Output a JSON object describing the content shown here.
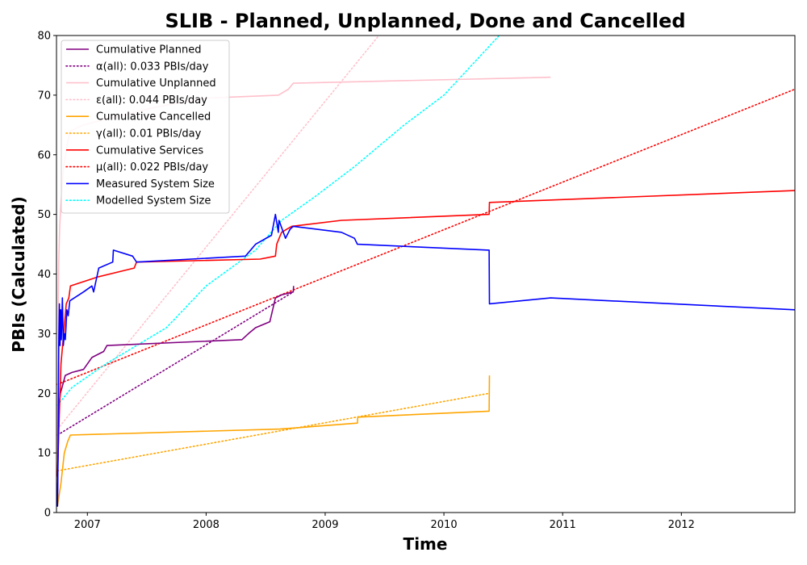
{
  "chart_data": {
    "type": "line",
    "title": "SLIB - Planned, Unplanned, Done  and Cancelled",
    "xlabel": "Time",
    "ylabel": "PBIs (Calculated)",
    "xlim": [
      "2006-09-28",
      "2012-12-15"
    ],
    "ylim": [
      0,
      80
    ],
    "x_ticks": [
      "2007",
      "2008",
      "2009",
      "2010",
      "2011",
      "2012"
    ],
    "y_ticks": [
      0,
      10,
      20,
      30,
      40,
      50,
      60,
      70,
      80
    ],
    "grid": false,
    "legend_position": "top-left",
    "series": [
      {
        "name": "Cumulative Planned",
        "color": "#800080",
        "style": "solid",
        "points": [
          [
            "2006-10-01",
            1
          ],
          [
            "2006-10-03",
            10
          ],
          [
            "2006-10-06",
            18
          ],
          [
            "2006-10-10",
            20
          ],
          [
            "2006-10-15",
            21
          ],
          [
            "2006-10-20",
            22
          ],
          [
            "2006-10-25",
            23
          ],
          [
            "2006-11-15",
            23.5
          ],
          [
            "2006-12-20",
            24
          ],
          [
            "2007-01-15",
            26
          ],
          [
            "2007-02-20",
            27
          ],
          [
            "2007-03-02",
            28
          ],
          [
            "2008-04-20",
            29
          ],
          [
            "2008-05-10",
            30
          ],
          [
            "2008-06-01",
            31
          ],
          [
            "2008-07-15",
            32
          ],
          [
            "2008-08-01",
            36
          ],
          [
            "2008-08-20",
            36.5
          ],
          [
            "2008-09-25",
            37
          ],
          [
            "2008-09-26",
            38
          ]
        ]
      },
      {
        "name": "α(all): 0.033 PBIs/day",
        "color": "#800080",
        "style": "dotted",
        "points": [
          [
            "2006-10-01",
            13
          ],
          [
            "2008-09-25",
            37
          ]
        ]
      },
      {
        "name": "Cumulative Unplanned",
        "color": "#ffc0cb",
        "style": "solid",
        "points": [
          [
            "2006-10-01",
            5
          ],
          [
            "2006-10-03",
            30
          ],
          [
            "2006-10-05",
            42
          ],
          [
            "2006-10-08",
            48
          ],
          [
            "2006-10-12",
            52
          ],
          [
            "2006-10-20",
            58
          ],
          [
            "2006-11-01",
            62
          ],
          [
            "2006-11-10",
            64
          ],
          [
            "2006-12-20",
            65
          ],
          [
            "2007-03-01",
            66
          ],
          [
            "2007-08-01",
            68
          ],
          [
            "2008-01-01",
            69.5
          ],
          [
            "2008-08-10",
            70
          ],
          [
            "2008-09-10",
            71
          ],
          [
            "2008-09-25",
            72
          ],
          [
            "2010-11-25",
            73
          ]
        ]
      },
      {
        "name": "ε(all): 0.044 PBIs/day",
        "color": "#ffc0cb",
        "style": "dotted",
        "points": [
          [
            "2006-10-01",
            14
          ],
          [
            "2009-06-15",
            80
          ]
        ]
      },
      {
        "name": "Cumulative Cancelled",
        "color": "#ffa500",
        "style": "solid",
        "points": [
          [
            "2006-10-01",
            1
          ],
          [
            "2006-10-12",
            5
          ],
          [
            "2006-10-22",
            10
          ],
          [
            "2006-11-02",
            12
          ],
          [
            "2006-11-10",
            13
          ],
          [
            "2008-08-15",
            14
          ],
          [
            "2009-04-10",
            15
          ],
          [
            "2009-04-11",
            16
          ],
          [
            "2010-05-20",
            17
          ],
          [
            "2010-05-21",
            23
          ]
        ]
      },
      {
        "name": "γ(all): 0.01 PBIs/day",
        "color": "#ffa500",
        "style": "dotted",
        "points": [
          [
            "2006-10-01",
            7
          ],
          [
            "2010-05-20",
            20
          ]
        ]
      },
      {
        "name": "Cumulative Services",
        "color": "#ff0000",
        "style": "solid",
        "points": [
          [
            "2006-10-01",
            6
          ],
          [
            "2006-10-06",
            15
          ],
          [
            "2006-10-12",
            25
          ],
          [
            "2006-10-20",
            30
          ],
          [
            "2006-10-28",
            35
          ],
          [
            "2006-11-05",
            36
          ],
          [
            "2006-11-10",
            38
          ],
          [
            "2007-02-01",
            39.5
          ],
          [
            "2007-05-25",
            41
          ],
          [
            "2007-06-01",
            42
          ],
          [
            "2008-06-15",
            42.5
          ],
          [
            "2008-08-01",
            43
          ],
          [
            "2008-08-05",
            45
          ],
          [
            "2008-08-20",
            47
          ],
          [
            "2008-09-20",
            48
          ],
          [
            "2009-02-20",
            49
          ],
          [
            "2010-05-20",
            50
          ],
          [
            "2010-05-21",
            52
          ],
          [
            "2012-12-15",
            54
          ]
        ]
      },
      {
        "name": "μ(all): 0.022 PBIs/day",
        "color": "#ff0000",
        "style": "dotted",
        "points": [
          [
            "2006-10-01",
            21.5
          ],
          [
            "2012-12-15",
            71
          ]
        ]
      },
      {
        "name": "Measured System Size",
        "color": "#0000ff",
        "style": "solid",
        "points": [
          [
            "2006-10-01",
            1
          ],
          [
            "2006-10-03",
            11
          ],
          [
            "2006-10-05",
            28
          ],
          [
            "2006-10-07",
            35
          ],
          [
            "2006-10-09",
            28
          ],
          [
            "2006-10-11",
            34
          ],
          [
            "2006-10-13",
            29
          ],
          [
            "2006-10-16",
            36
          ],
          [
            "2006-10-19",
            28
          ],
          [
            "2006-10-22",
            30
          ],
          [
            "2006-10-25",
            29
          ],
          [
            "2006-10-30",
            34
          ],
          [
            "2006-11-03",
            33
          ],
          [
            "2006-11-08",
            35.5
          ],
          [
            "2006-12-20",
            37
          ],
          [
            "2007-01-15",
            38
          ],
          [
            "2007-01-20",
            37
          ],
          [
            "2007-02-01",
            40
          ],
          [
            "2007-02-05",
            41
          ],
          [
            "2007-03-20",
            42
          ],
          [
            "2007-03-22",
            44
          ],
          [
            "2007-05-20",
            43
          ],
          [
            "2007-06-01",
            42
          ],
          [
            "2008-05-01",
            43
          ],
          [
            "2008-06-01",
            45
          ],
          [
            "2008-07-20",
            46.5
          ],
          [
            "2008-08-01",
            50
          ],
          [
            "2008-08-10",
            47
          ],
          [
            "2008-08-12",
            49
          ],
          [
            "2008-09-01",
            46
          ],
          [
            "2008-09-15",
            47.5
          ],
          [
            "2008-09-25",
            48
          ],
          [
            "2009-02-20",
            47
          ],
          [
            "2009-04-01",
            46
          ],
          [
            "2009-04-10",
            45
          ],
          [
            "2010-05-20",
            44
          ],
          [
            "2010-05-21",
            35
          ],
          [
            "2010-11-25",
            36
          ],
          [
            "2012-12-15",
            34
          ]
        ]
      },
      {
        "name": "Modelled System Size",
        "color": "#00ffff",
        "style": "dotted",
        "points": [
          [
            "2006-10-01",
            18
          ],
          [
            "2006-11-15",
            21
          ],
          [
            "2007-03-01",
            25
          ],
          [
            "2007-09-01",
            31
          ],
          [
            "2008-01-01",
            38
          ],
          [
            "2008-06-01",
            44
          ],
          [
            "2008-08-20",
            49
          ],
          [
            "2008-12-01",
            53
          ],
          [
            "2009-04-01",
            58
          ],
          [
            "2009-09-01",
            65
          ],
          [
            "2010-01-01",
            70
          ],
          [
            "2010-06-20",
            80
          ]
        ]
      }
    ]
  }
}
